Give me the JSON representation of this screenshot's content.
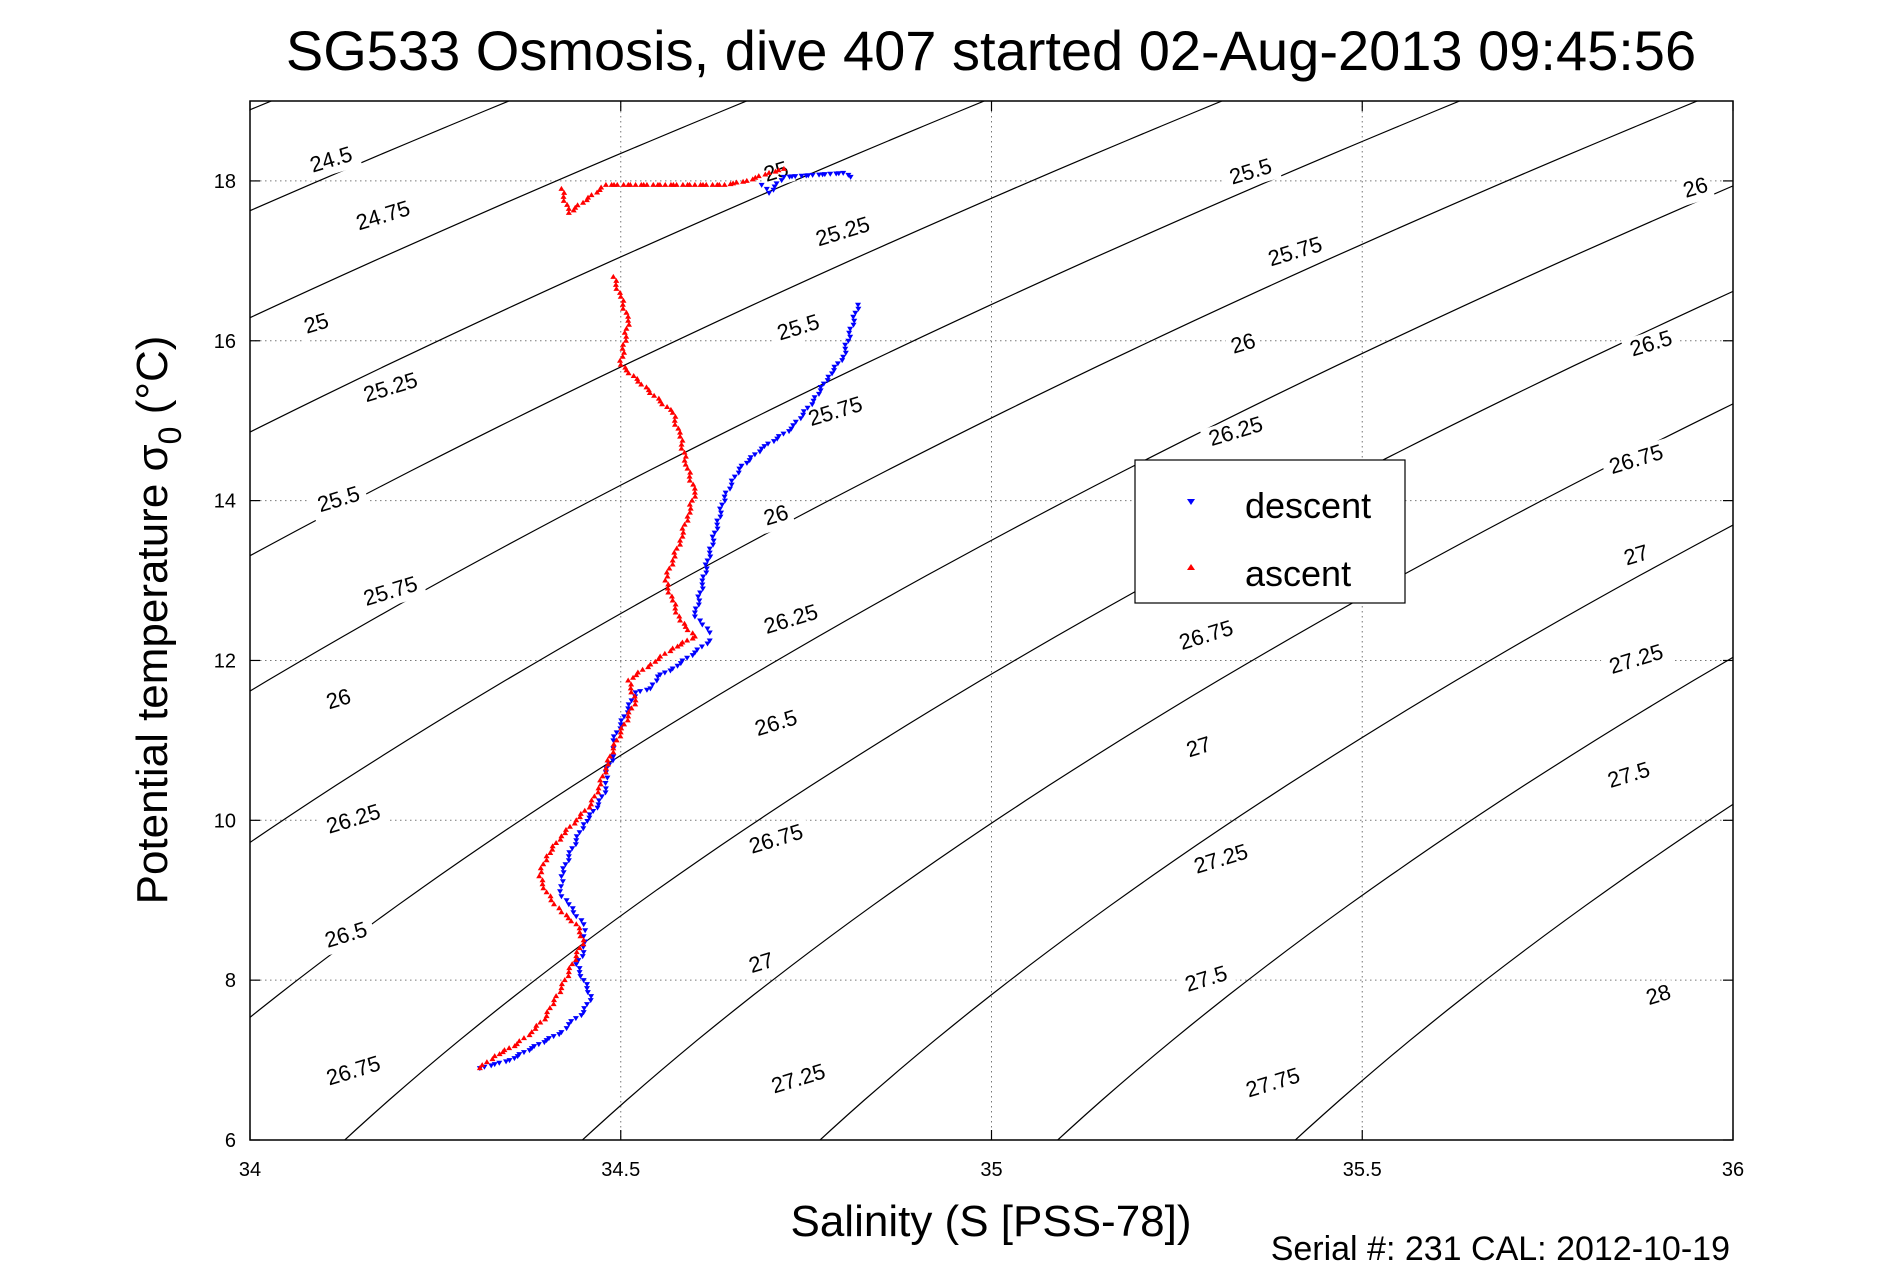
{
  "chart_data": {
    "type": "scatter",
    "title": "SG533 Osmosis, dive 407 started 02-Aug-2013 09:45:56",
    "xlabel": "Salinity (S [PSS-78])",
    "ylabel_main": "Potential temperature σ",
    "ylabel_sub": "0",
    "ylabel_unit": " (°C)",
    "footer": "Serial #: 231  CAL: 2012-10-19",
    "xlim": [
      34,
      36
    ],
    "ylim": [
      6,
      19
    ],
    "xticks": [
      34,
      34.5,
      35,
      35.5,
      36
    ],
    "xtick_labels": [
      "34",
      "34.5",
      "35",
      "35.5",
      "36"
    ],
    "yticks": [
      6,
      8,
      10,
      12,
      14,
      16,
      18
    ],
    "ytick_labels": [
      "6",
      "8",
      "10",
      "12",
      "14",
      "16",
      "18"
    ],
    "grid": true,
    "legend_position": "center-right",
    "contour_levels": [
      24.5,
      24.75,
      25,
      25.25,
      25.5,
      25.75,
      26,
      26.25,
      26.5,
      26.75,
      27,
      27.25,
      27.5,
      27.75,
      28
    ],
    "contour_labels": [
      {
        "text": "24.5",
        "x": 34.11,
        "y": 18.25
      },
      {
        "text": "24.75",
        "x": 34.18,
        "y": 17.55
      },
      {
        "text": "25",
        "x": 34.09,
        "y": 16.2
      },
      {
        "text": "25.25",
        "x": 34.19,
        "y": 15.4
      },
      {
        "text": "25.5",
        "x": 34.12,
        "y": 14.0
      },
      {
        "text": "25.75",
        "x": 34.19,
        "y": 12.85
      },
      {
        "text": "26",
        "x": 34.12,
        "y": 11.5
      },
      {
        "text": "26.25",
        "x": 34.14,
        "y": 10.0
      },
      {
        "text": "26.5",
        "x": 34.13,
        "y": 8.55
      },
      {
        "text": "26.75",
        "x": 34.14,
        "y": 6.85
      },
      {
        "text": "25",
        "x": 34.71,
        "y": 18.1
      },
      {
        "text": "25.25",
        "x": 34.8,
        "y": 17.35
      },
      {
        "text": "25.5",
        "x": 34.74,
        "y": 16.15
      },
      {
        "text": "25.75",
        "x": 34.79,
        "y": 15.1
      },
      {
        "text": "26",
        "x": 34.71,
        "y": 13.8
      },
      {
        "text": "26.25",
        "x": 34.73,
        "y": 12.5
      },
      {
        "text": "26.5",
        "x": 34.71,
        "y": 11.2
      },
      {
        "text": "26.75",
        "x": 34.71,
        "y": 9.75
      },
      {
        "text": "27",
        "x": 34.69,
        "y": 8.2
      },
      {
        "text": "27.25",
        "x": 34.74,
        "y": 6.75
      },
      {
        "text": "25.5",
        "x": 35.35,
        "y": 18.1
      },
      {
        "text": "25.75",
        "x": 35.41,
        "y": 17.1
      },
      {
        "text": "26",
        "x": 35.34,
        "y": 15.95
      },
      {
        "text": "26.25",
        "x": 35.33,
        "y": 14.85
      },
      {
        "text": "26.75",
        "x": 35.29,
        "y": 12.3
      },
      {
        "text": "27",
        "x": 35.28,
        "y": 10.9
      },
      {
        "text": "27.25",
        "x": 35.31,
        "y": 9.5
      },
      {
        "text": "27.5",
        "x": 35.29,
        "y": 8.0
      },
      {
        "text": "27.75",
        "x": 35.38,
        "y": 6.7
      },
      {
        "text": "26",
        "x": 35.95,
        "y": 17.9
      },
      {
        "text": "26.5",
        "x": 35.89,
        "y": 15.95
      },
      {
        "text": "26.75",
        "x": 35.87,
        "y": 14.5
      },
      {
        "text": "27",
        "x": 35.87,
        "y": 13.3
      },
      {
        "text": "27.25",
        "x": 35.87,
        "y": 12.0
      },
      {
        "text": "27.5",
        "x": 35.86,
        "y": 10.55
      },
      {
        "text": "28",
        "x": 35.9,
        "y": 7.8
      }
    ],
    "series": [
      {
        "name": "descent",
        "color": "#0000ff",
        "marker": "triangle-down",
        "x": [
          34.69,
          34.7,
          34.72,
          34.8,
          34.81,
          34.82,
          34.8,
          34.78,
          34.76,
          34.73,
          34.69,
          34.66,
          34.64,
          34.63,
          34.62,
          34.61,
          34.6,
          34.61,
          34.62,
          34.62,
          34.6,
          34.57,
          34.55,
          34.54,
          34.52,
          34.51,
          34.5,
          34.49,
          34.49,
          34.49,
          34.48,
          34.48,
          34.47,
          34.45,
          34.44,
          34.43,
          34.42,
          34.42,
          34.43,
          34.44,
          34.45,
          34.45,
          34.45,
          34.44,
          34.45,
          34.46,
          34.45,
          34.43,
          34.42,
          34.4,
          34.38,
          34.35,
          34.33,
          34.31
        ],
        "y": [
          17.95,
          17.85,
          18.05,
          18.1,
          18.05,
          16.45,
          15.8,
          15.55,
          15.25,
          14.9,
          14.65,
          14.4,
          14.05,
          13.7,
          13.35,
          12.95,
          12.55,
          12.45,
          12.35,
          12.25,
          12.1,
          11.9,
          11.8,
          11.65,
          11.6,
          11.4,
          11.2,
          11.0,
          10.9,
          10.8,
          10.6,
          10.4,
          10.2,
          9.95,
          9.75,
          9.55,
          9.3,
          9.05,
          8.95,
          8.8,
          8.7,
          8.55,
          8.35,
          8.2,
          8.0,
          7.8,
          7.6,
          7.45,
          7.35,
          7.25,
          7.15,
          7.0,
          6.95,
          6.9
        ]
      },
      {
        "name": "ascent",
        "color": "#ff0000",
        "marker": "triangle-up",
        "x": [
          34.42,
          34.43,
          34.48,
          34.52,
          34.56,
          34.6,
          34.64,
          34.67,
          34.7,
          34.72,
          34.49,
          34.5,
          34.51,
          34.5,
          34.57,
          34.58,
          34.59,
          34.6,
          34.59,
          34.58,
          34.57,
          34.56,
          34.57,
          34.58,
          34.6,
          34.57,
          34.54,
          34.51,
          34.52,
          34.51,
          34.5,
          34.49,
          34.48,
          34.47,
          34.46,
          34.44,
          34.42,
          34.4,
          34.39,
          34.4,
          34.41,
          34.42,
          34.44,
          34.45,
          34.44,
          34.43,
          34.42,
          34.41,
          34.4,
          34.38,
          34.36,
          34.33,
          34.31
        ],
        "y": [
          17.9,
          17.6,
          17.95,
          17.95,
          17.95,
          17.95,
          17.95,
          18.0,
          18.1,
          18.15,
          16.8,
          16.55,
          16.25,
          15.7,
          15.1,
          14.8,
          14.4,
          14.1,
          13.8,
          13.5,
          13.25,
          13.0,
          12.75,
          12.5,
          12.3,
          12.15,
          11.95,
          11.75,
          11.5,
          11.3,
          11.1,
          10.9,
          10.65,
          10.4,
          10.2,
          10.0,
          9.8,
          9.55,
          9.3,
          9.1,
          8.95,
          8.85,
          8.7,
          8.5,
          8.3,
          8.1,
          7.9,
          7.75,
          7.55,
          7.35,
          7.2,
          7.05,
          6.9
        ]
      }
    ]
  }
}
